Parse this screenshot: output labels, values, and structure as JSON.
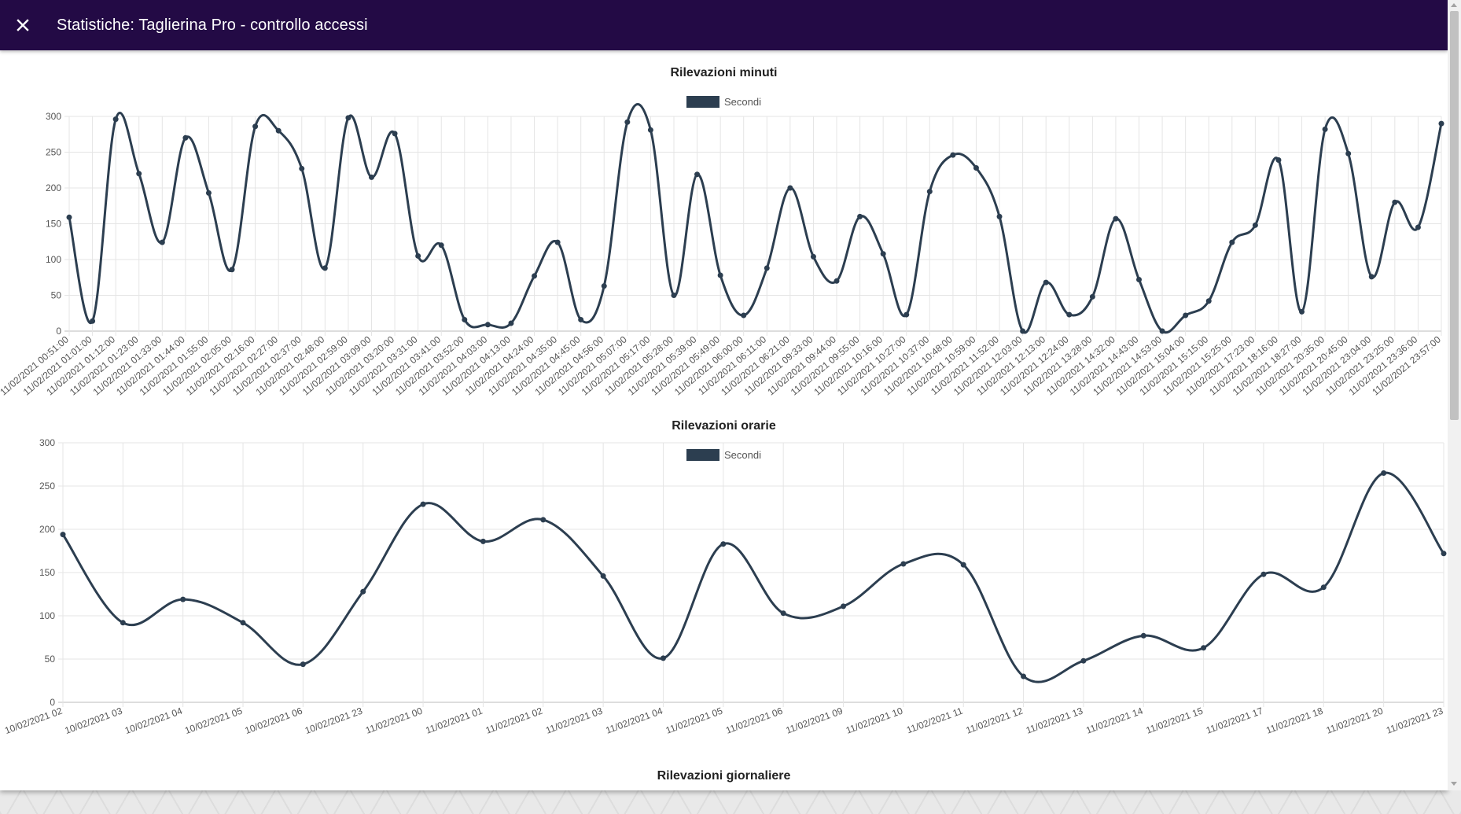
{
  "toolbar": {
    "title": "Statistiche: Taglierina Pro - controllo accessi",
    "close_icon": "close-icon",
    "background": "#230a45"
  },
  "colors": {
    "series": "#2c3e50",
    "grid": "#e5e5e5"
  },
  "chart_data": [
    {
      "type": "line",
      "title": "Rilevazioni minuti",
      "series": [
        {
          "name": "Secondi",
          "values": [
            159,
            14,
            296,
            220,
            124,
            270,
            193,
            86,
            286,
            280,
            227,
            88,
            298,
            215,
            276,
            105,
            120,
            16,
            9,
            11,
            77,
            124,
            16,
            63,
            292,
            281,
            50,
            219,
            78,
            22,
            88,
            200,
            104,
            70,
            160,
            108,
            23,
            195,
            246,
            228,
            160,
            0,
            68,
            23,
            48,
            157,
            72,
            0,
            22,
            42,
            124,
            148,
            239,
            27,
            282,
            248,
            76,
            180,
            145,
            290
          ]
        }
      ],
      "categories": [
        "11/02/2021 00:51:00",
        "11/02/2021 01:01:00",
        "11/02/2021 01:12:00",
        "11/02/2021 01:23:00",
        "11/02/2021 01:33:00",
        "11/02/2021 01:44:00",
        "11/02/2021 01:55:00",
        "11/02/2021 02:05:00",
        "11/02/2021 02:16:00",
        "11/02/2021 02:27:00",
        "11/02/2021 02:37:00",
        "11/02/2021 02:48:00",
        "11/02/2021 02:59:00",
        "11/02/2021 03:09:00",
        "11/02/2021 03:20:00",
        "11/02/2021 03:31:00",
        "11/02/2021 03:41:00",
        "11/02/2021 03:52:00",
        "11/02/2021 04:03:00",
        "11/02/2021 04:13:00",
        "11/02/2021 04:24:00",
        "11/02/2021 04:35:00",
        "11/02/2021 04:45:00",
        "11/02/2021 04:56:00",
        "11/02/2021 05:07:00",
        "11/02/2021 05:17:00",
        "11/02/2021 05:28:00",
        "11/02/2021 05:39:00",
        "11/02/2021 05:49:00",
        "11/02/2021 06:00:00",
        "11/02/2021 06:11:00",
        "11/02/2021 06:21:00",
        "11/02/2021 09:33:00",
        "11/02/2021 09:44:00",
        "11/02/2021 09:55:00",
        "11/02/2021 10:16:00",
        "11/02/2021 10:27:00",
        "11/02/2021 10:37:00",
        "11/02/2021 10:48:00",
        "11/02/2021 10:59:00",
        "11/02/2021 11:52:00",
        "11/02/2021 12:03:00",
        "11/02/2021 12:13:00",
        "11/02/2021 12:24:00",
        "11/02/2021 13:28:00",
        "11/02/2021 14:32:00",
        "11/02/2021 14:43:00",
        "11/02/2021 14:53:00",
        "11/02/2021 15:04:00",
        "11/02/2021 15:15:00",
        "11/02/2021 15:25:00",
        "11/02/2021 17:23:00",
        "11/02/2021 18:16:00",
        "11/02/2021 18:27:00",
        "11/02/2021 20:35:00",
        "11/02/2021 20:45:00",
        "11/02/2021 23:04:00",
        "11/02/2021 23:25:00",
        "11/02/2021 23:36:00",
        "11/02/2021 23:57:00"
      ],
      "yticks": [
        0,
        50,
        100,
        150,
        200,
        250,
        300
      ],
      "ylim": [
        0,
        300
      ],
      "legend_position": "top",
      "grid": true
    },
    {
      "type": "line",
      "title": "Rilevazioni orarie",
      "series": [
        {
          "name": "Secondi",
          "values": [
            194,
            92,
            119,
            92,
            44,
            128,
            229,
            186,
            211,
            146,
            51,
            183,
            103,
            111,
            160,
            159,
            30,
            48,
            77,
            63,
            148,
            133,
            265,
            172
          ]
        }
      ],
      "categories": [
        "10/02/2021 02",
        "10/02/2021 03",
        "10/02/2021 04",
        "10/02/2021 05",
        "10/02/2021 06",
        "10/02/2021 23",
        "11/02/2021 00",
        "11/02/2021 01",
        "11/02/2021 02",
        "11/02/2021 03",
        "11/02/2021 04",
        "11/02/2021 05",
        "11/02/2021 06",
        "11/02/2021 09",
        "11/02/2021 10",
        "11/02/2021 11",
        "11/02/2021 12",
        "11/02/2021 13",
        "11/02/2021 14",
        "11/02/2021 15",
        "11/02/2021 17",
        "11/02/2021 18",
        "11/02/2021 20",
        "11/02/2021 23"
      ],
      "yticks": [
        0,
        50,
        100,
        150,
        200,
        250,
        300
      ],
      "ylim": [
        0,
        300
      ],
      "legend_position": "top",
      "grid": true
    },
    {
      "type": "line",
      "title": "Rilevazioni giornaliere"
    }
  ]
}
